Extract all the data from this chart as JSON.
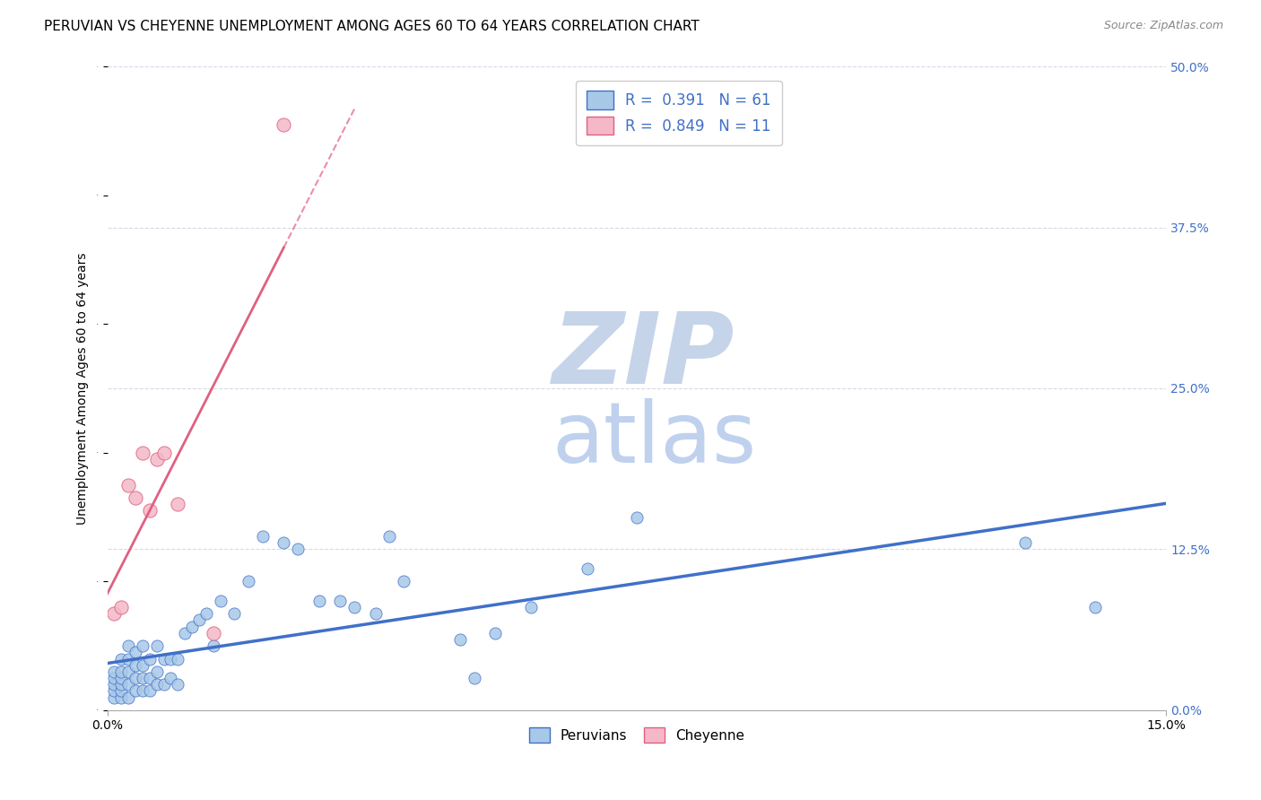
{
  "title": "PERUVIAN VS CHEYENNE UNEMPLOYMENT AMONG AGES 60 TO 64 YEARS CORRELATION CHART",
  "source": "Source: ZipAtlas.com",
  "ylabel": "Unemployment Among Ages 60 to 64 years",
  "xlim": [
    0.0,
    0.15
  ],
  "ylim": [
    0.0,
    0.5
  ],
  "yticks_right": [
    0.0,
    0.125,
    0.25,
    0.375,
    0.5
  ],
  "ytick_labels_right": [
    "0.0%",
    "12.5%",
    "25.0%",
    "37.5%",
    "50.0%"
  ],
  "r_peruvian": 0.391,
  "n_peruvian": 61,
  "r_cheyenne": 0.849,
  "n_cheyenne": 11,
  "color_peruvian": "#a8c8e8",
  "color_cheyenne": "#f4b8c8",
  "line_color_peruvian": "#4070c8",
  "line_color_cheyenne": "#e06080",
  "legend_text_color": "#4070c8",
  "watermark_zip_color": "#c0d0e8",
  "watermark_atlas_color": "#b8ccec",
  "background_color": "#ffffff",
  "grid_color": "#d8d8e8",
  "peruvian_x": [
    0.001,
    0.001,
    0.001,
    0.001,
    0.001,
    0.002,
    0.002,
    0.002,
    0.002,
    0.002,
    0.002,
    0.003,
    0.003,
    0.003,
    0.003,
    0.003,
    0.004,
    0.004,
    0.004,
    0.004,
    0.005,
    0.005,
    0.005,
    0.005,
    0.006,
    0.006,
    0.006,
    0.007,
    0.007,
    0.007,
    0.008,
    0.008,
    0.009,
    0.009,
    0.01,
    0.01,
    0.011,
    0.012,
    0.013,
    0.014,
    0.015,
    0.016,
    0.018,
    0.02,
    0.022,
    0.025,
    0.027,
    0.03,
    0.033,
    0.035,
    0.038,
    0.04,
    0.042,
    0.05,
    0.052,
    0.055,
    0.06,
    0.068,
    0.075,
    0.13,
    0.14
  ],
  "peruvian_y": [
    0.01,
    0.015,
    0.02,
    0.025,
    0.03,
    0.01,
    0.015,
    0.02,
    0.025,
    0.03,
    0.04,
    0.01,
    0.02,
    0.03,
    0.04,
    0.05,
    0.015,
    0.025,
    0.035,
    0.045,
    0.015,
    0.025,
    0.035,
    0.05,
    0.015,
    0.025,
    0.04,
    0.02,
    0.03,
    0.05,
    0.02,
    0.04,
    0.025,
    0.04,
    0.02,
    0.04,
    0.06,
    0.065,
    0.07,
    0.075,
    0.05,
    0.085,
    0.075,
    0.1,
    0.135,
    0.13,
    0.125,
    0.085,
    0.085,
    0.08,
    0.075,
    0.135,
    0.1,
    0.055,
    0.025,
    0.06,
    0.08,
    0.11,
    0.15,
    0.13,
    0.08
  ],
  "cheyenne_x": [
    0.001,
    0.002,
    0.003,
    0.004,
    0.005,
    0.006,
    0.007,
    0.008,
    0.01,
    0.015,
    0.025
  ],
  "cheyenne_y": [
    0.075,
    0.08,
    0.175,
    0.165,
    0.2,
    0.155,
    0.195,
    0.2,
    0.16,
    0.06,
    0.455
  ],
  "scatter_size_peruvian": 90,
  "scatter_size_cheyenne": 120
}
